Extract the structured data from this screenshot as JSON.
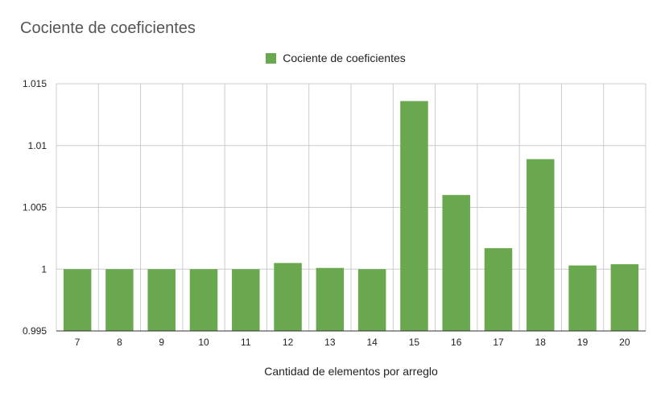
{
  "chart_data": {
    "type": "bar",
    "title": "Cociente de coeficientes",
    "xlabel": "Cantidad de elementos por arreglo",
    "ylabel": "",
    "categories": [
      "7",
      "8",
      "9",
      "10",
      "11",
      "12",
      "13",
      "14",
      "15",
      "16",
      "17",
      "18",
      "19",
      "20"
    ],
    "series": [
      {
        "name": "Cociente de coeficientes",
        "color": "#6aa84f",
        "values": [
          1.0,
          1.0,
          1.0,
          1.0,
          1.0,
          1.0005,
          1.0001,
          1.0,
          1.0136,
          1.006,
          1.0017,
          1.0089,
          1.0003,
          1.0004
        ]
      }
    ],
    "ylim": [
      0.995,
      1.015
    ],
    "yticks": [
      0.995,
      1,
      1.005,
      1.01,
      1.015
    ],
    "ytick_labels": [
      "0.995",
      "1",
      "1.005",
      "1.01",
      "1.015"
    ],
    "grid": true,
    "legend_position": "top-center"
  }
}
